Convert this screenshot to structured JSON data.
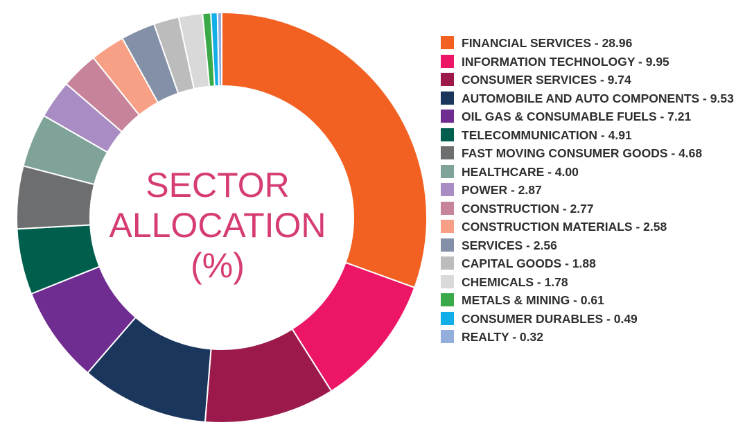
{
  "chart_data": {
    "type": "pie",
    "title": [
      "SECTOR",
      "ALLOCATION",
      "(%)"
    ],
    "legend_position": "right",
    "slices": [
      {
        "label": "FINANCIAL SERVICES - 28.96",
        "value": 28.96,
        "color": "#f26122"
      },
      {
        "label": "INFORMATION TECHNOLOGY - 9.95",
        "value": 9.95,
        "color": "#ec1566"
      },
      {
        "label": "CONSUMER SERVICES - 9.74",
        "value": 9.74,
        "color": "#9b1a4b"
      },
      {
        "label": "AUTOMOBILE AND AUTO COMPONENTS - 9.53",
        "value": 9.53,
        "color": "#1b365d"
      },
      {
        "label": "OIL GAS & CONSUMABLE FUELS - 7.21",
        "value": 7.21,
        "color": "#6f2c91"
      },
      {
        "label": "TELECOMMUNICATION - 4.91",
        "value": 4.91,
        "color": "#005e4d"
      },
      {
        "label": "FAST MOVING CONSUMER GOODS - 4.68",
        "value": 4.68,
        "color": "#6d6e70"
      },
      {
        "label": "HEALTHCARE - 4.00",
        "value": 4.0,
        "color": "#7fa399"
      },
      {
        "label": "POWER - 2.87",
        "value": 2.87,
        "color": "#a98cc3"
      },
      {
        "label": "CONSTRUCTION - 2.77",
        "value": 2.77,
        "color": "#c7839a"
      },
      {
        "label": "CONSTRUCTION MATERIALS - 2.58",
        "value": 2.58,
        "color": "#f8a085"
      },
      {
        "label": "SERVICES - 2.56",
        "value": 2.56,
        "color": "#8390a8"
      },
      {
        "label": "CAPITAL GOODS - 1.88",
        "value": 1.88,
        "color": "#bcbcbc"
      },
      {
        "label": "CHEMICALS - 1.78",
        "value": 1.78,
        "color": "#d9d9d9"
      },
      {
        "label": "METALS & MINING - 0.61",
        "value": 0.61,
        "color": "#3aaa49"
      },
      {
        "label": "CONSUMER DURABLES - 0.49",
        "value": 0.49,
        "color": "#12aee8"
      },
      {
        "label": "REALTY - 0.32",
        "value": 0.32,
        "color": "#93aedd"
      }
    ]
  }
}
